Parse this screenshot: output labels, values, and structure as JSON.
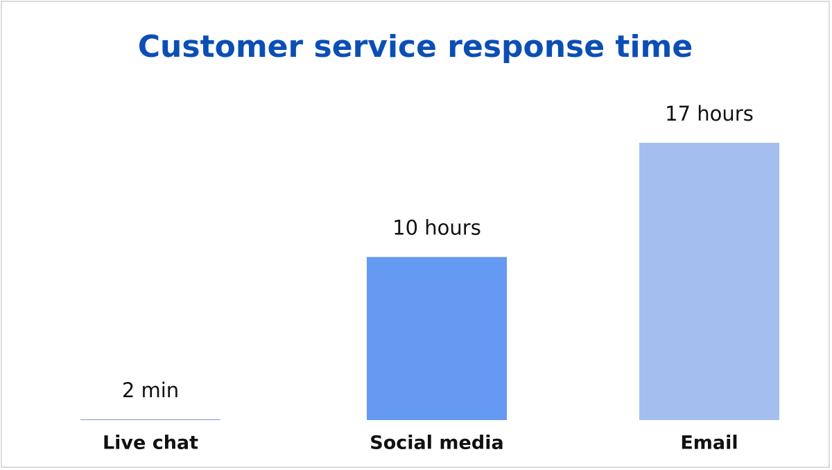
{
  "chart_data": {
    "type": "bar",
    "title": "Customer service response time",
    "categories": [
      "Live chat",
      "Social media",
      "Email"
    ],
    "values": [
      2,
      600,
      1020
    ],
    "value_labels": [
      "2 min",
      "10 hours",
      "17 hours"
    ],
    "colors": [
      "#4a80ec",
      "#6699f2",
      "#a4bfef"
    ]
  }
}
